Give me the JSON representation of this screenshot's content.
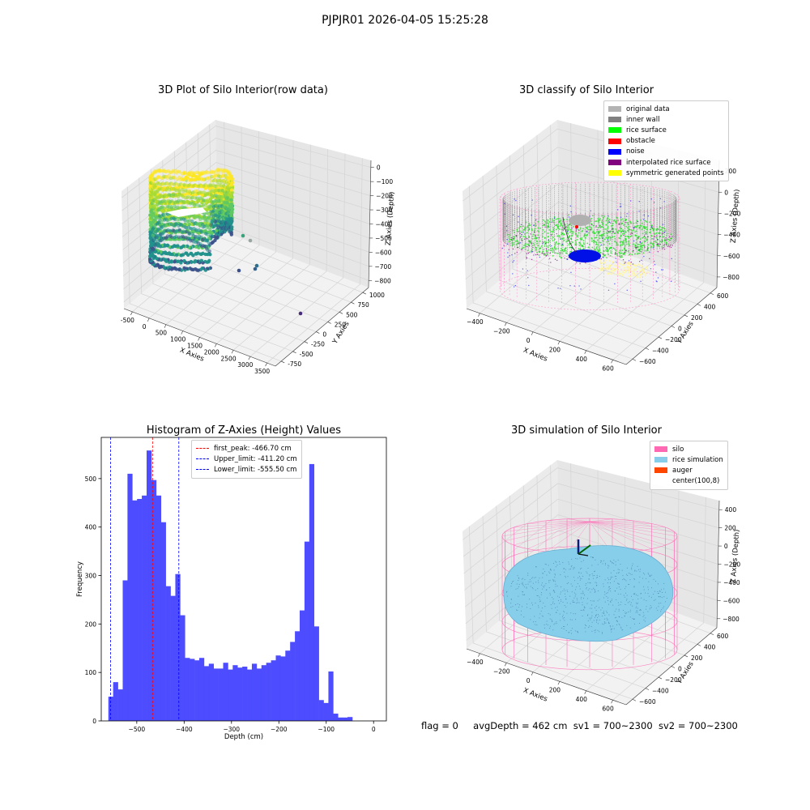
{
  "suptitle": "PJPJR01 2026-04-05 15:25:28",
  "status": {
    "flag": "flag = 0",
    "avg_depth": "avgDepth = 462 cm",
    "sv1": "sv1 = 700~2300",
    "sv2": "sv2 = 700~2300"
  },
  "chart_data": [
    {
      "type": "scatter",
      "title": "3D Plot of Silo Interior(row data)",
      "xlabel": "X Axies",
      "ylabel": "Y Axies",
      "zlabel": "Z Axies (Depth)",
      "x_ticks": [
        "-500",
        "0",
        "500",
        "1000",
        "1500",
        "2000",
        "2500",
        "3000",
        "3500"
      ],
      "y_ticks": [
        "-750",
        "-500",
        "-250",
        "0",
        "250",
        "500",
        "750",
        "1000"
      ],
      "z_ticks": [
        "0",
        "−100",
        "−200",
        "−300",
        "−400",
        "−500",
        "−600",
        "−700",
        "−800"
      ],
      "colormap": "viridis",
      "outlier_colors": [
        "#3aa27a",
        "#9aa7a0",
        "#2f6d8c",
        "#35608d",
        "#3b4f8a",
        "#472c7a"
      ]
    },
    {
      "type": "scatter",
      "title": "3D classify of Silo Interior",
      "xlabel": "X Axies",
      "ylabel": "Y Axies",
      "zlabel": "Z Axies (Depth)",
      "x_ticks": [
        "−400",
        "−200",
        "0",
        "200",
        "400",
        "600"
      ],
      "y_ticks": [
        "−600",
        "−400",
        "−200",
        "0",
        "200",
        "400",
        "600"
      ],
      "z_ticks": [
        "200",
        "0",
        "−200",
        "−400",
        "−600",
        "−800"
      ],
      "legend": [
        {
          "label": "original data",
          "color": "#b3b3b3"
        },
        {
          "label": "inner wall",
          "color": "#808080"
        },
        {
          "label": "rice surface",
          "color": "#00ff00"
        },
        {
          "label": "obstacle",
          "color": "#ff0000"
        },
        {
          "label": "noise",
          "color": "#0000ff"
        },
        {
          "label": "interpolated rice surface",
          "color": "#800080"
        },
        {
          "label": "symmetric generated points",
          "color": "#ffff00"
        }
      ],
      "legend_position": "top-right"
    },
    {
      "type": "bar",
      "title": "Histogram of Z-Axies (Height) Values",
      "xlabel": "Depth (cm)",
      "ylabel": "Frequency",
      "bar_color": "#4d4dff",
      "bin_start": -560,
      "bin_width": 10.1,
      "values": [
        50,
        80,
        65,
        290,
        510,
        455,
        458,
        465,
        558,
        497,
        465,
        410,
        278,
        258,
        303,
        218,
        130,
        128,
        125,
        130,
        113,
        118,
        108,
        108,
        120,
        106,
        115,
        110,
        112,
        106,
        118,
        108,
        115,
        120,
        125,
        135,
        133,
        145,
        163,
        185,
        228,
        370,
        530,
        195,
        43,
        37,
        102,
        15,
        7,
        7,
        8
      ],
      "xlim": [
        -575,
        27
      ],
      "ylim": [
        0,
        585
      ],
      "x_ticks": [
        -500,
        -400,
        -300,
        -200,
        -100,
        0
      ],
      "x_tick_labels": [
        "−500",
        "−400",
        "−300",
        "−200",
        "−100",
        "0"
      ],
      "y_ticks": [
        0,
        100,
        200,
        300,
        400,
        500
      ],
      "y_tick_labels": [
        "0",
        "100",
        "200",
        "300",
        "400",
        "500"
      ],
      "vlines": [
        {
          "x": -466.7,
          "color": "#ff0000",
          "label": "first_peak: -466.70 cm"
        },
        {
          "x": -411.2,
          "color": "#0000ff",
          "label": "Upper_limit: -411.20 cm"
        },
        {
          "x": -555.5,
          "color": "#0000ff",
          "label": "Lower_limit: -555.50 cm"
        }
      ],
      "legend_position": "top-center"
    },
    {
      "type": "scatter",
      "title": "3D simulation of Silo Interior",
      "xlabel": "X Axies",
      "ylabel": "Y Axies",
      "zlabel": "Z Axies (Depth)",
      "x_ticks": [
        "−400",
        "−200",
        "0",
        "200",
        "400",
        "600"
      ],
      "y_ticks": [
        "−600",
        "−400",
        "−200",
        "0",
        "200",
        "400",
        "600"
      ],
      "z_ticks": [
        "400",
        "200",
        "0",
        "−200",
        "−400",
        "−600",
        "−800"
      ],
      "legend": [
        {
          "label": "silo",
          "color": "#ff69b4"
        },
        {
          "label": "rice simulation",
          "color": "#87ceeb"
        },
        {
          "label": "auger",
          "color": "#ff4500"
        },
        {
          "label": "center(100,8)",
          "color": "none"
        }
      ],
      "legend_position": "top-right"
    }
  ]
}
